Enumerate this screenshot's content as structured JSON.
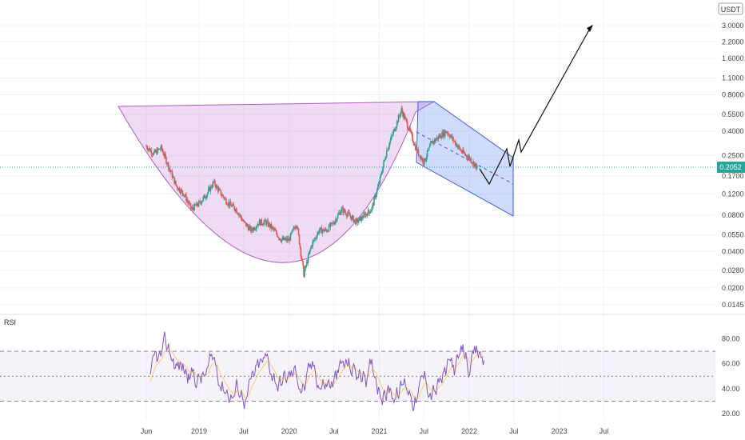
{
  "chart_data": [
    {
      "type": "candlestick",
      "quote_currency": "USDT",
      "y_scale": "log",
      "ylim": [
        0.013,
        4.6
      ],
      "y_ticks": [
        "3.0000",
        "2.2000",
        "1.6000",
        "1.1000",
        "0.8000",
        "0.5500",
        "0.4000",
        "0.2500",
        "0.1700",
        "0.1200",
        "0.0800",
        "0.0550",
        "0.0400",
        "0.0280",
        "0.0200",
        "0.0145"
      ],
      "last_price": "0.2052",
      "x_ticks": [
        "Jun",
        "2019",
        "Jul",
        "2020",
        "Jul",
        "2021",
        "Jul",
        "2022",
        "Jul",
        "2023",
        "Jul"
      ],
      "approx_close_path": [
        [
          "2018-06",
          0.3
        ],
        [
          "2018-07",
          0.26
        ],
        [
          "2018-08",
          0.29
        ],
        [
          "2018-09",
          0.2
        ],
        [
          "2018-10",
          0.14
        ],
        [
          "2018-11",
          0.12
        ],
        [
          "2018-12",
          0.09
        ],
        [
          "2019-01",
          0.1
        ],
        [
          "2019-02",
          0.12
        ],
        [
          "2019-03",
          0.15
        ],
        [
          "2019-04",
          0.12
        ],
        [
          "2019-05",
          0.1
        ],
        [
          "2019-06",
          0.09
        ],
        [
          "2019-07",
          0.07
        ],
        [
          "2019-08",
          0.06
        ],
        [
          "2019-09",
          0.07
        ],
        [
          "2019-10",
          0.07
        ],
        [
          "2019-11",
          0.06
        ],
        [
          "2019-12",
          0.05
        ],
        [
          "2020-01",
          0.05
        ],
        [
          "2020-02",
          0.07
        ],
        [
          "2020-03",
          0.026
        ],
        [
          "2020-04",
          0.045
        ],
        [
          "2020-05",
          0.06
        ],
        [
          "2020-06",
          0.06
        ],
        [
          "2020-07",
          0.07
        ],
        [
          "2020-08",
          0.09
        ],
        [
          "2020-09",
          0.08
        ],
        [
          "2020-10",
          0.07
        ],
        [
          "2020-11",
          0.08
        ],
        [
          "2020-12",
          0.09
        ],
        [
          "2021-01",
          0.15
        ],
        [
          "2021-02",
          0.28
        ],
        [
          "2021-03",
          0.4
        ],
        [
          "2021-04",
          0.6
        ],
        [
          "2021-05",
          0.42
        ],
        [
          "2021-06",
          0.28
        ],
        [
          "2021-07",
          0.22
        ],
        [
          "2021-08",
          0.32
        ],
        [
          "2021-09",
          0.36
        ],
        [
          "2021-10",
          0.4
        ],
        [
          "2021-11",
          0.33
        ],
        [
          "2021-12",
          0.27
        ],
        [
          "2022-01",
          0.24
        ],
        [
          "2022-02",
          0.2
        ]
      ],
      "annotations": [
        "cup pattern",
        "descending channel",
        "projected zig-zag arrow breaking out toward 3.0000"
      ]
    },
    {
      "type": "line",
      "panel_label": "RSI",
      "ylim": [
        15,
        95
      ],
      "y_ticks": [
        "80.00",
        "60.00",
        "40.00",
        "20.00"
      ],
      "band_levels": [
        30,
        50,
        70
      ]
    }
  ]
}
